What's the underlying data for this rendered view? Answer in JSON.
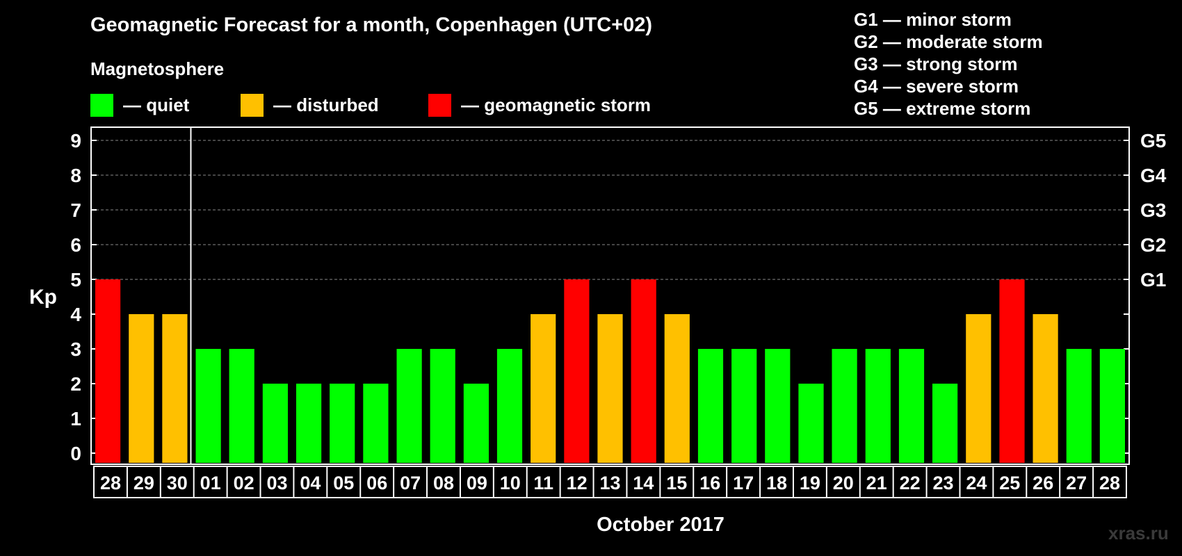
{
  "header": {
    "title": "Geomagnetic Forecast for a month, Copenhagen (UTC+02)",
    "subtitle": "Magnetosphere"
  },
  "legend": [
    {
      "label": "— quiet",
      "color": "#00ff00"
    },
    {
      "label": "— disturbed",
      "color": "#ffc000"
    },
    {
      "label": "— geomagnetic storm",
      "color": "#ff0000"
    }
  ],
  "storm_levels": [
    "G1 — minor storm",
    "G2 — moderate storm",
    "G3 — strong storm",
    "G4 — severe storm",
    "G5 — extreme storm"
  ],
  "watermark": "xras.ru",
  "chart_data": {
    "type": "bar",
    "ylabel": "Kp",
    "xlabel": "October 2017",
    "ylim": [
      0,
      9
    ],
    "yticks": [
      "0",
      "1",
      "2",
      "3",
      "4",
      "5",
      "6",
      "7",
      "8",
      "9"
    ],
    "right_ticks": [
      {
        "value": 5,
        "label": "G1"
      },
      {
        "value": 6,
        "label": "G2"
      },
      {
        "value": 7,
        "label": "G3"
      },
      {
        "value": 8,
        "label": "G4"
      },
      {
        "value": 9,
        "label": "G5"
      }
    ],
    "grid": "dashed, Kp 5–9",
    "month_divider_after_index": 2,
    "categories": [
      "28",
      "29",
      "30",
      "01",
      "02",
      "03",
      "04",
      "05",
      "06",
      "07",
      "08",
      "09",
      "10",
      "11",
      "12",
      "13",
      "14",
      "15",
      "16",
      "17",
      "18",
      "19",
      "20",
      "21",
      "22",
      "23",
      "24",
      "25",
      "26",
      "27",
      "28"
    ],
    "values": [
      5,
      4,
      4,
      3,
      3,
      2,
      2,
      2,
      2,
      3,
      3,
      2,
      3,
      4,
      5,
      4,
      5,
      4,
      3,
      3,
      3,
      2,
      3,
      3,
      3,
      2,
      4,
      5,
      4,
      3,
      3
    ],
    "colors": {
      "quiet": "#00ff00",
      "disturbed": "#ffc000",
      "storm": "#ff0000"
    }
  }
}
